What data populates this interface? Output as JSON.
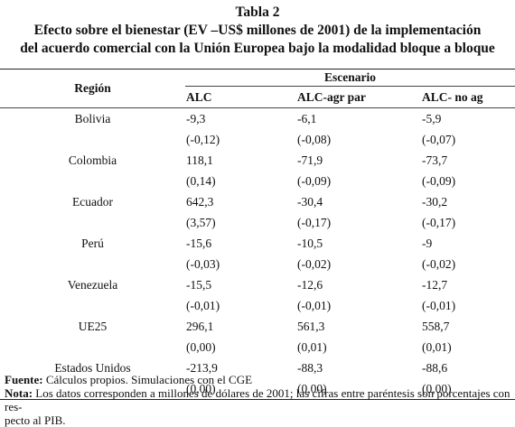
{
  "title": {
    "line1": "Tabla 2",
    "line2": "Efecto sobre el bienestar (EV –US$ millones de 2001) de la implementación",
    "line3": "del acuerdo comercial con la Unión Europea bajo la modalidad bloque a bloque"
  },
  "table": {
    "region_header": "Región",
    "scenario_header": "Escenario",
    "columns": [
      "ALC",
      "ALC-agr par",
      "ALC- no ag"
    ],
    "rows": [
      {
        "region": "Bolivia",
        "values": [
          "-9,3",
          "-6,1",
          "-5,9"
        ],
        "pct": [
          "(-0,12)",
          "(-0,08)",
          "(-0,07)"
        ]
      },
      {
        "region": "Colombia",
        "values": [
          "118,1",
          "-71,9",
          "-73,7"
        ],
        "pct": [
          "(0,14)",
          "(-0,09)",
          "(-0,09)"
        ]
      },
      {
        "region": "Ecuador",
        "values": [
          "642,3",
          "-30,4",
          "-30,2"
        ],
        "pct": [
          "(3,57)",
          "(-0,17)",
          "(-0,17)"
        ]
      },
      {
        "region": "Perú",
        "values": [
          "-15,6",
          "-10,5",
          "-9"
        ],
        "pct": [
          "(-0,03)",
          "(-0,02)",
          "(-0,02)"
        ]
      },
      {
        "region": "Venezuela",
        "values": [
          "-15,5",
          "-12,6",
          "-12,7"
        ],
        "pct": [
          "(-0,01)",
          "(-0,01)",
          "(-0,01)"
        ]
      },
      {
        "region": "UE25",
        "values": [
          "296,1",
          "561,3",
          "558,7"
        ],
        "pct": [
          "(0,00)",
          "(0,01)",
          "(0,01)"
        ]
      },
      {
        "region": "Estados Unidos",
        "values": [
          "-213,9",
          "-88,3",
          "-88,6"
        ],
        "pct": [
          "(0,00)",
          "(0,00)",
          "(0,00)"
        ]
      }
    ]
  },
  "notes": {
    "source_label": "Fuente:",
    "source_text": " Cálculos propios. Simulaciones con el CGE",
    "note_label": "Nota:",
    "note_text": " Los datos corresponden a millones de dólares de 2001; las cifras entre paréntesis son porcentajes con res-",
    "note_text2": "pecto al PIB."
  }
}
